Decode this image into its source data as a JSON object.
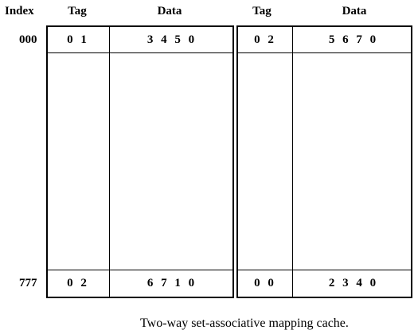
{
  "headers": {
    "index": "Index",
    "tag1": "Tag",
    "data1": "Data",
    "tag2": "Tag",
    "data2": "Data"
  },
  "rows": [
    {
      "index": "000",
      "tag1": "0 1",
      "data1": "3 4 5 0",
      "tag2": "0 2",
      "data2": "5 6 7 0"
    },
    {
      "index": "777",
      "tag1": "0 2",
      "data1": "6 7 1 0",
      "tag2": "0 0",
      "data2": "2 3 4 0"
    }
  ],
  "caption": "Two-way set-associative mapping cache."
}
